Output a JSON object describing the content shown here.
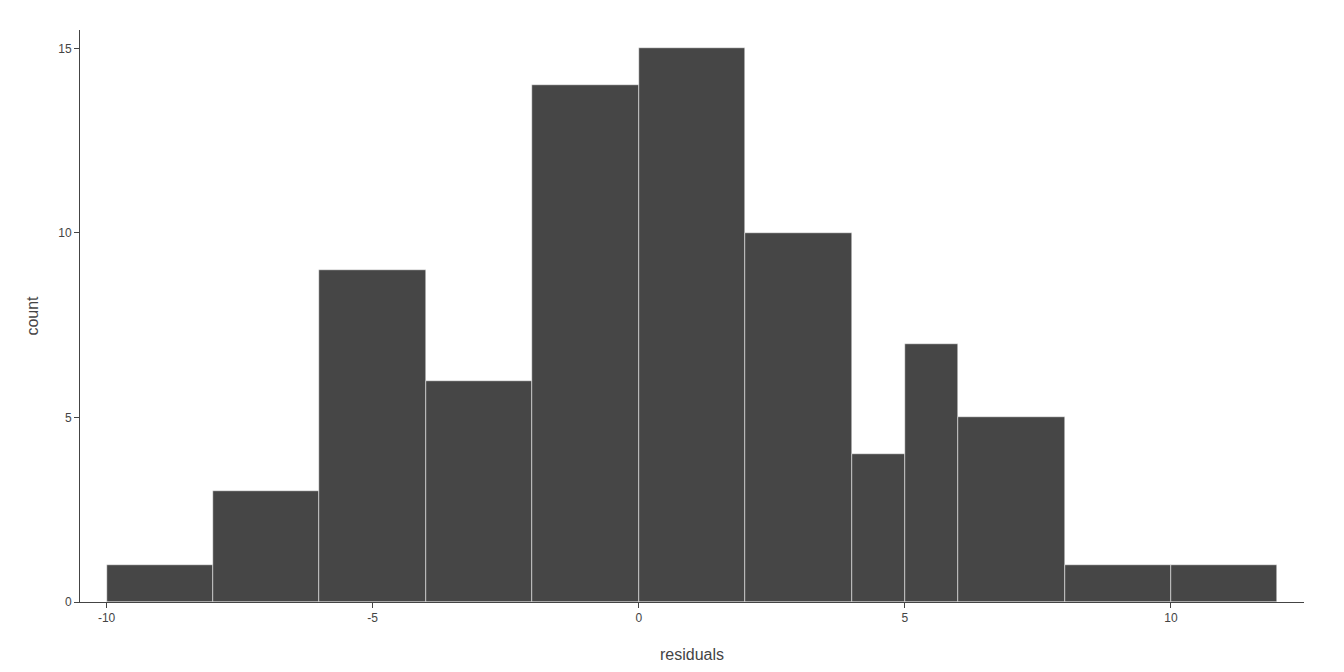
{
  "chart_data": {
    "type": "histogram",
    "bins": [
      -10,
      -8,
      -6,
      -4,
      -2,
      0,
      2,
      4,
      5,
      6,
      8,
      10,
      12
    ],
    "counts": [
      1,
      3,
      9,
      6,
      14,
      15,
      10,
      4,
      7,
      5,
      1,
      1
    ],
    "color": "#464646",
    "xlabel": "residuals",
    "ylabel": "count",
    "xlim": [
      -10.5,
      12.5
    ],
    "ylim": [
      0,
      15.5
    ],
    "xticks": [
      -10,
      -5,
      0,
      5,
      10
    ],
    "yticks": [
      0,
      5,
      10,
      15
    ],
    "grid": false
  }
}
